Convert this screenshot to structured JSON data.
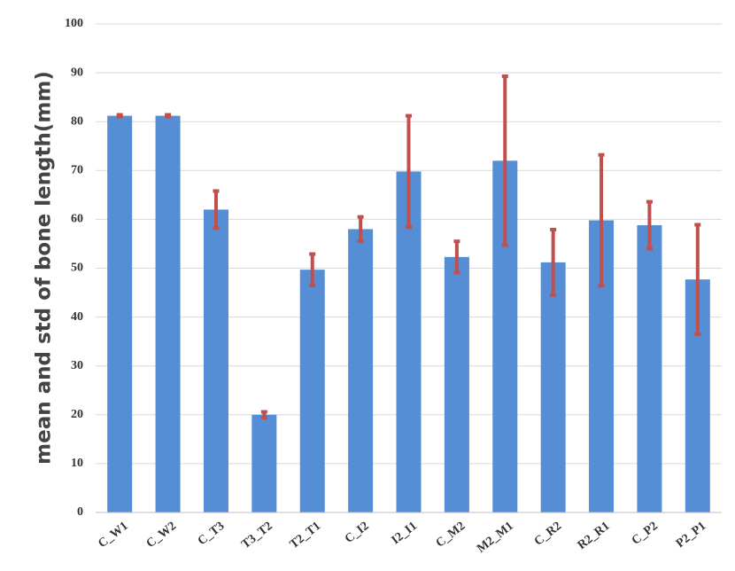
{
  "chart_data": {
    "type": "bar",
    "y_label": "mean and std of bone length(mm)",
    "categories": [
      "C_W1",
      "C_W2",
      "C_T3",
      "T3_T2",
      "T2_T1",
      "C_I2",
      "I2_I1",
      "C_M2",
      "M2_M1",
      "C_R2",
      "R2_R1",
      "C_P2",
      "P2_P1"
    ],
    "values": [
      81.2,
      81.2,
      62,
      20,
      49.7,
      58,
      69.8,
      52.3,
      72,
      51.2,
      59.8,
      58.8,
      47.7
    ],
    "errors": [
      0.2,
      0.2,
      3.8,
      0.6,
      3.2,
      2.5,
      11.4,
      3.2,
      17.3,
      6.7,
      13.4,
      4.8,
      11.2
    ],
    "color": "#558ed5",
    "error_color": "#c0504d",
    "ylim": [
      0,
      100
    ],
    "yticks": [
      0,
      10,
      20,
      30,
      40,
      50,
      60,
      70,
      80,
      90,
      100
    ],
    "grid": true
  }
}
